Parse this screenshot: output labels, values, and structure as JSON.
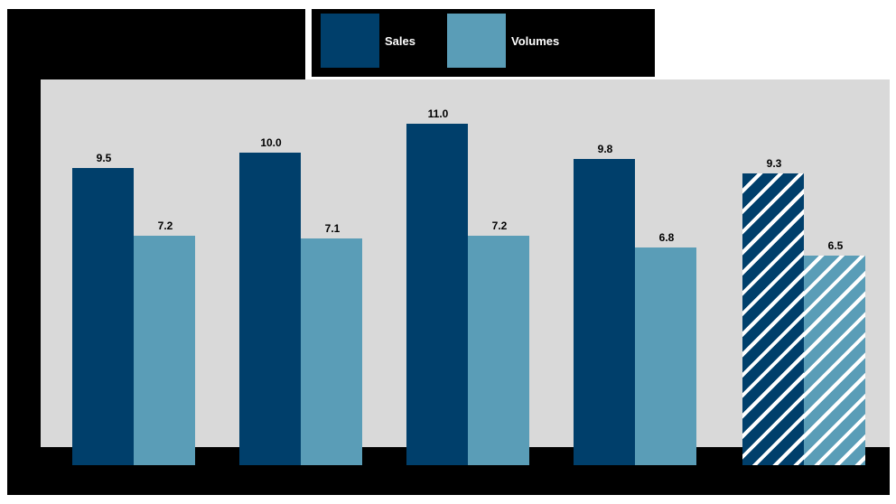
{
  "chart_data": {
    "type": "bar",
    "title": "",
    "subtitle": "",
    "xlabel": "",
    "ylabel": "",
    "categories": [
      "",
      "",
      "",
      "",
      ""
    ],
    "series": [
      {
        "name": "Sales",
        "color": "#003f6b",
        "values": [
          9.5,
          10.0,
          11.0,
          9.8,
          9.3
        ]
      },
      {
        "name": "Volumes",
        "color": "#5a9db7",
        "values": [
          7.2,
          7.1,
          7.2,
          6.8,
          6.5
        ]
      }
    ],
    "forecast_category_index": 4,
    "ylim": [
      0,
      12.5
    ],
    "grid": false,
    "legend_position": "top"
  },
  "legend": {
    "items": [
      {
        "label": "Sales",
        "color": "#003f6b"
      },
      {
        "label": "Volumes",
        "color": "#5a9db7"
      }
    ]
  },
  "colors": {
    "plot_background": "#d9d9d9",
    "sales": "#003f6b",
    "volumes": "#5a9db7"
  }
}
